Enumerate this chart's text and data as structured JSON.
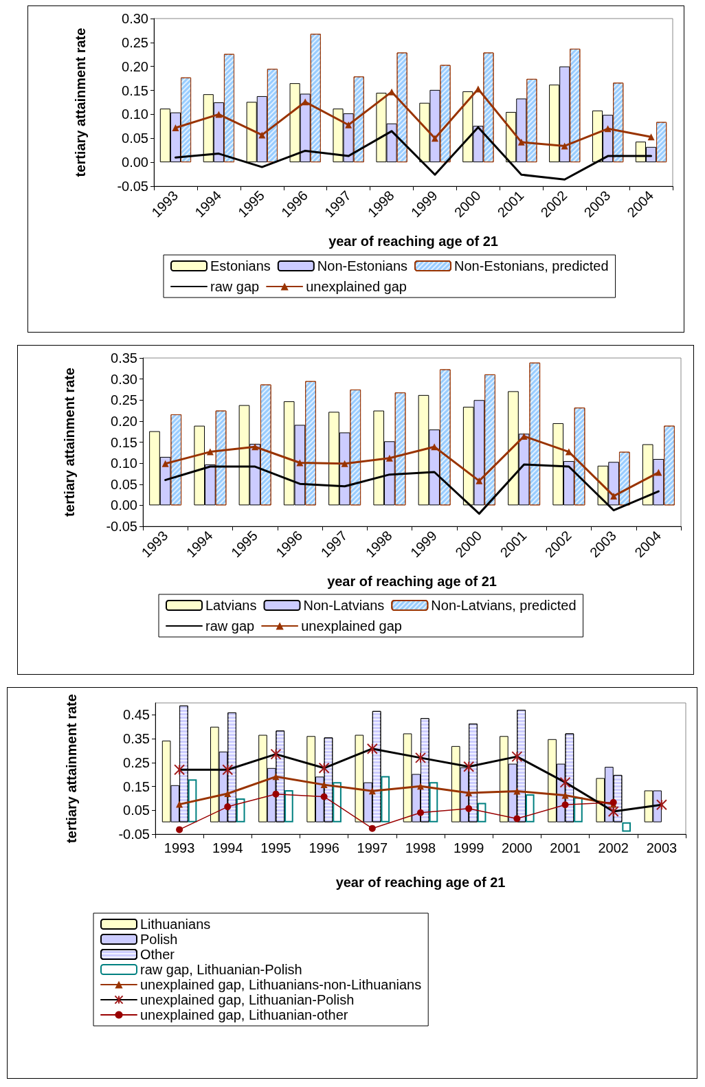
{
  "chart_data": [
    {
      "type": "bar",
      "xlabel": "year of reaching age of 21",
      "ylabel": "tertiary attainment rate",
      "categories": [
        "1993",
        "1994",
        "1995",
        "1996",
        "1997",
        "1998",
        "1999",
        "2000",
        "2001",
        "2002",
        "2003",
        "2004"
      ],
      "ylim": [
        -0.05,
        0.3
      ],
      "yticks": [
        {
          "value": -0.05,
          "label": "-0.05"
        },
        {
          "value": 0,
          "label": "0.00"
        },
        {
          "value": 0.05,
          "label": "0.05"
        },
        {
          "value": 0.1,
          "label": "0.10"
        },
        {
          "value": 0.15,
          "label": "0.15"
        },
        {
          "value": 0.2,
          "label": "0.20"
        },
        {
          "value": 0.25,
          "label": "0.25"
        },
        {
          "value": 0.3,
          "label": "0.30"
        }
      ],
      "grid": false,
      "legend": "bottom",
      "series": [
        {
          "name": "Estonians",
          "color": "#ffffcc",
          "values": [
            0.112,
            0.142,
            0.126,
            0.165,
            0.112,
            0.145,
            0.124,
            0.148,
            0.105,
            0.162,
            0.108,
            0.043
          ]
        },
        {
          "name": "Non-Estonians",
          "color": "#ccccff",
          "values": [
            0.104,
            0.125,
            0.138,
            0.143,
            0.102,
            0.081,
            0.151,
            0.076,
            0.133,
            0.2,
            0.099,
            0.032
          ]
        },
        {
          "name": "Non-Estonians, predicted",
          "color": "#99ccff",
          "values": [
            0.177,
            0.226,
            0.195,
            0.268,
            0.179,
            0.229,
            0.203,
            0.229,
            0.174,
            0.237,
            0.166,
            0.084
          ]
        },
        {
          "name": "raw gap",
          "type": "line",
          "marker": "none",
          "color": "#000000",
          "values": [
            0.01,
            0.018,
            -0.01,
            0.024,
            0.013,
            0.065,
            -0.026,
            0.073,
            -0.026,
            -0.036,
            0.013,
            0.013
          ]
        },
        {
          "name": "unexplained gap",
          "type": "line",
          "marker": "triangle",
          "color": "#993300",
          "values": [
            0.072,
            0.1,
            0.057,
            0.126,
            0.078,
            0.147,
            0.05,
            0.153,
            0.042,
            0.034,
            0.07,
            0.053
          ]
        }
      ]
    },
    {
      "type": "bar",
      "xlabel": "year of reaching age of 21",
      "ylabel": "tertiary attainment rate",
      "categories": [
        "1993",
        "1994",
        "1995",
        "1996",
        "1997",
        "1998",
        "1999",
        "2000",
        "2001",
        "2002",
        "2003",
        "2004"
      ],
      "ylim": [
        -0.05,
        0.35
      ],
      "yticks": [
        {
          "value": -0.05,
          "label": "-0.05"
        },
        {
          "value": 0,
          "label": "0.00"
        },
        {
          "value": 0.05,
          "label": "0.05"
        },
        {
          "value": 0.1,
          "label": "0.10"
        },
        {
          "value": 0.15,
          "label": "0.15"
        },
        {
          "value": 0.2,
          "label": "0.20"
        },
        {
          "value": 0.25,
          "label": "0.25"
        },
        {
          "value": 0.3,
          "label": "0.30"
        },
        {
          "value": 0.35,
          "label": "0.35"
        }
      ],
      "grid": false,
      "legend": "bottom",
      "series": [
        {
          "name": "Latvians",
          "color": "#ffffcc",
          "values": [
            0.176,
            0.189,
            0.238,
            0.247,
            0.222,
            0.225,
            0.262,
            0.234,
            0.271,
            0.195,
            0.094,
            0.145
          ]
        },
        {
          "name": "Non-Latvians",
          "color": "#ccccff",
          "values": [
            0.115,
            0.097,
            0.146,
            0.191,
            0.173,
            0.152,
            0.18,
            0.25,
            0.17,
            0.105,
            0.103,
            0.11
          ]
        },
        {
          "name": "Non-Latvians, predicted",
          "color": "#99ccff",
          "values": [
            0.216,
            0.225,
            0.287,
            0.295,
            0.275,
            0.268,
            0.323,
            0.311,
            0.339,
            0.232,
            0.127,
            0.189
          ]
        },
        {
          "name": "raw gap",
          "type": "line",
          "marker": "none",
          "color": "#000000",
          "values": [
            0.06,
            0.092,
            0.092,
            0.051,
            0.045,
            0.073,
            0.079,
            -0.02,
            0.097,
            0.092,
            -0.012,
            0.033
          ]
        },
        {
          "name": "unexplained gap",
          "type": "line",
          "marker": "triangle",
          "color": "#993300",
          "values": [
            0.099,
            0.127,
            0.139,
            0.101,
            0.099,
            0.112,
            0.139,
            0.058,
            0.164,
            0.127,
            0.022,
            0.078
          ]
        }
      ]
    },
    {
      "type": "bar",
      "xlabel": "year of reaching age of 21",
      "ylabel": "tertiary attainment rate",
      "categories": [
        "1993",
        "1994",
        "1995",
        "1996",
        "1997",
        "1998",
        "1999",
        "2000",
        "2001",
        "2002",
        "2003"
      ],
      "ylim": [
        -0.05,
        0.5
      ],
      "yticks": [
        -0.05,
        0.05,
        0.15,
        0.25,
        0.35,
        0.45
      ],
      "grid": false,
      "legend": "bottom",
      "series": [
        {
          "name": "Lithuanians",
          "color": "#ffffcc",
          "values": [
            0.342,
            0.4,
            0.366,
            0.361,
            0.366,
            0.372,
            0.319,
            0.361,
            0.348,
            0.185,
            0.133
          ]
        },
        {
          "name": "Polish",
          "color": "#ccccff",
          "values": [
            0.155,
            0.296,
            0.227,
            0.191,
            0.167,
            0.202,
            0.23,
            0.245,
            0.245,
            0.232,
            0.133
          ]
        },
        {
          "name": "Other",
          "color": "#ccccff",
          "values": [
            0.489,
            0.46,
            0.384,
            0.355,
            0.466,
            0.436,
            0.413,
            0.471,
            0.372,
            0.198,
            null
          ]
        },
        {
          "name": "raw gap, Lithuanian-Polish",
          "color": "#008080",
          "values": [
            0.18,
            0.1,
            0.134,
            0.168,
            0.193,
            0.168,
            0.081,
            0.117,
            0.104,
            -0.04,
            null
          ]
        },
        {
          "name": "unexplained gap, Lithuanians-non-Lithuanians",
          "type": "line",
          "marker": "triangle",
          "color": "#993300",
          "values": [
            0.075,
            0.12,
            0.191,
            0.157,
            0.131,
            0.151,
            0.123,
            0.13,
            0.113,
            0.075,
            null
          ]
        },
        {
          "name": "unexplained gap, Lithuanian-Polish",
          "type": "line",
          "marker": "cross",
          "color": "#000000",
          "values": [
            0.22,
            0.22,
            0.285,
            0.227,
            0.308,
            0.27,
            0.233,
            0.275,
            0.167,
            0.045,
            0.073
          ]
        },
        {
          "name": "unexplained gap, Lithuanian-other",
          "type": "line",
          "marker": "circle",
          "color": "#990000",
          "values": [
            -0.031,
            0.065,
            0.118,
            0.107,
            -0.026,
            0.04,
            0.057,
            0.015,
            0.073,
            0.083,
            null
          ]
        }
      ]
    }
  ]
}
